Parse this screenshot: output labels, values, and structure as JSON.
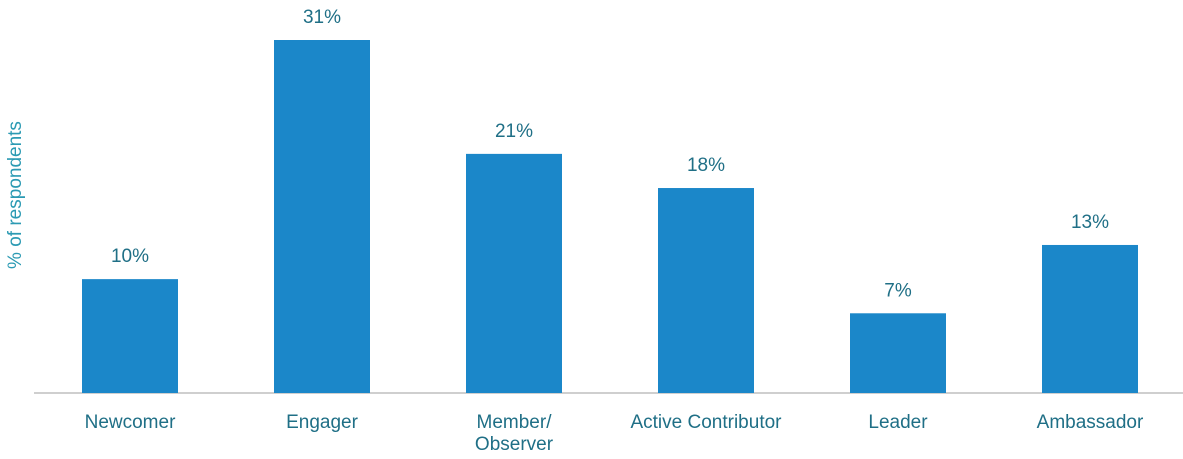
{
  "chart_data": {
    "type": "bar",
    "y_label": "% of respondents",
    "categories": [
      "Newcomer",
      "Engager",
      "Member/\nObserver",
      "Active Contributor",
      "Leader",
      "Ambassador"
    ],
    "values": [
      10,
      31,
      21,
      18,
      7,
      13
    ],
    "value_labels": [
      "10%",
      "31%",
      "21%",
      "18%",
      "7%",
      "13%"
    ],
    "color": "#1b87c9",
    "ylim": [
      0,
      31
    ]
  }
}
